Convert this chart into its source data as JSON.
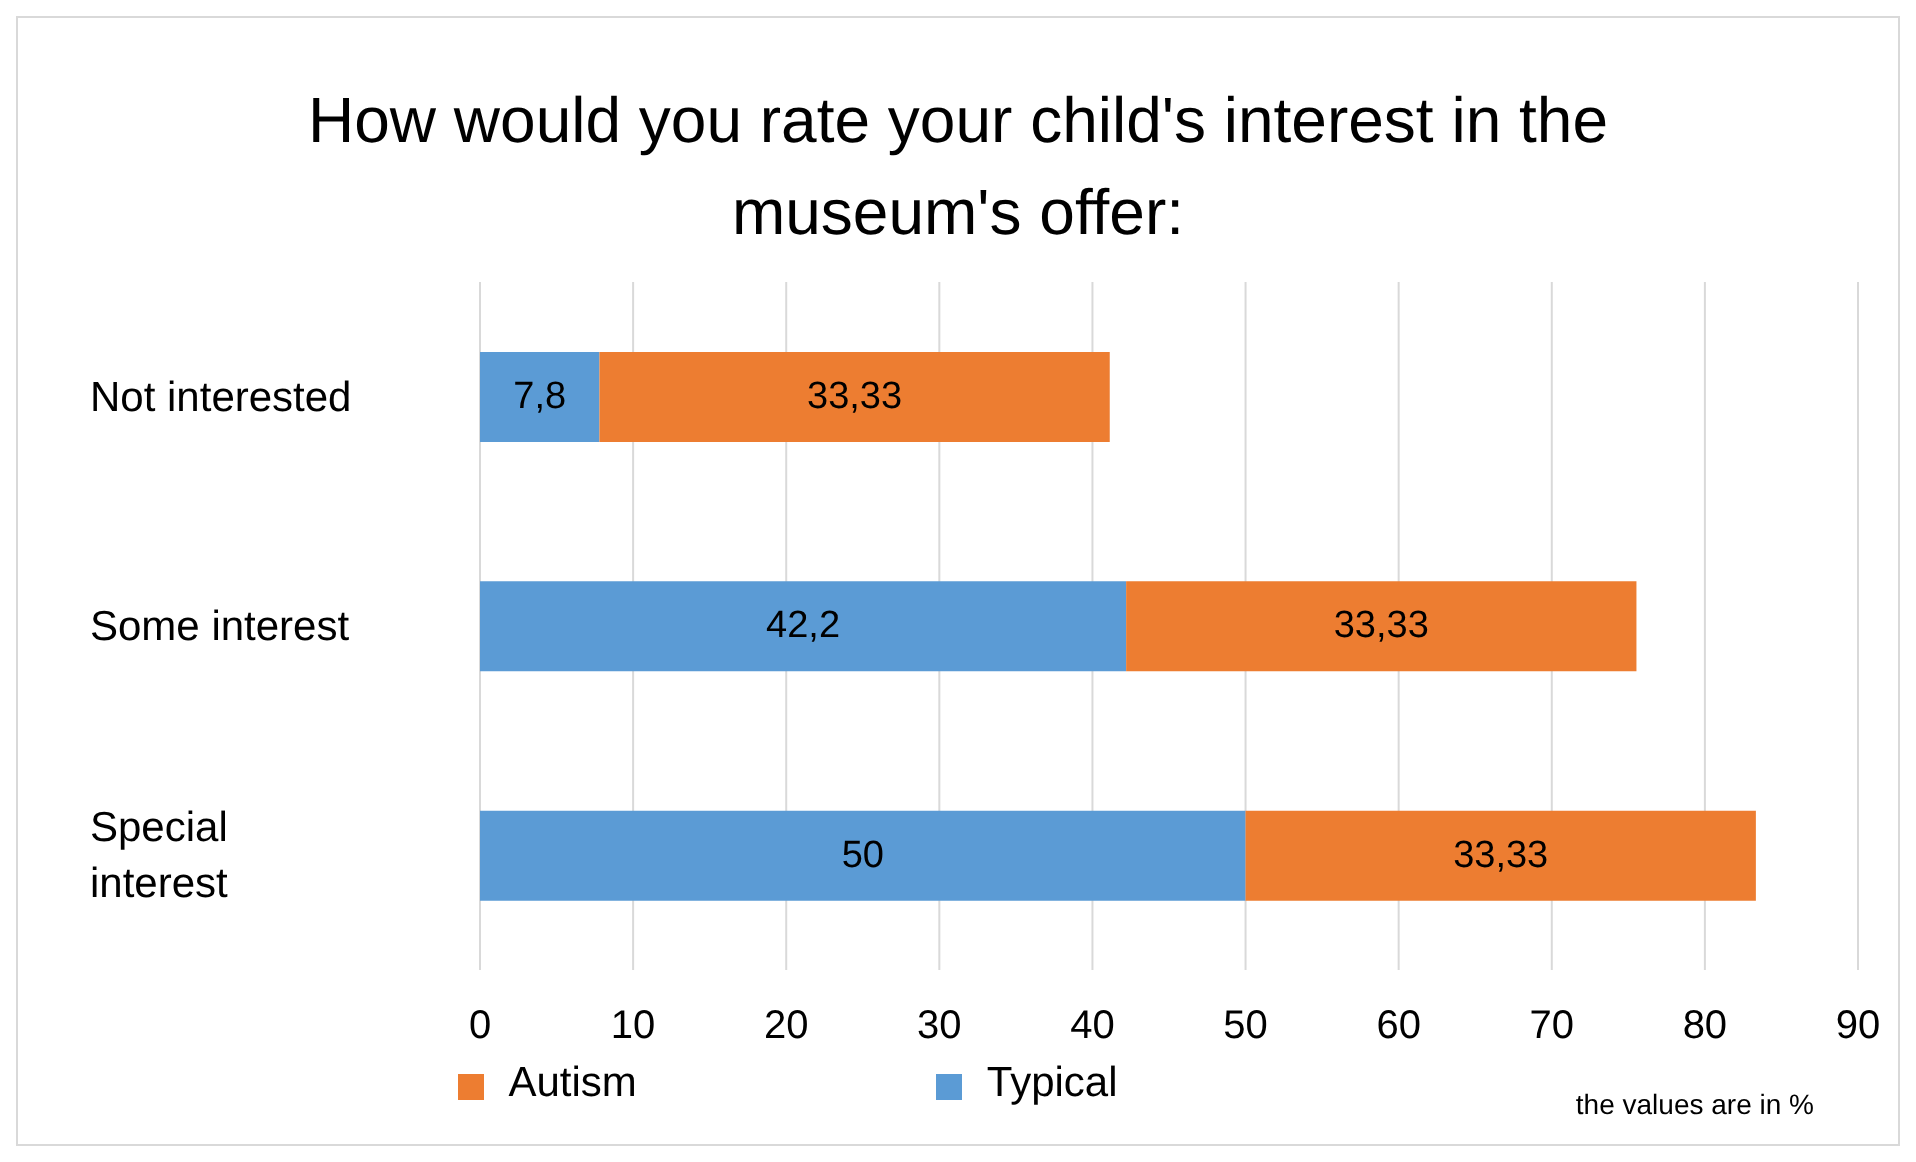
{
  "chart_data": {
    "type": "bar",
    "orientation": "horizontal",
    "stacked": true,
    "title": "How would you rate your child's interest in the museum's offer:",
    "categories": [
      "Not interested",
      "Some interest",
      "Special interest"
    ],
    "series": [
      {
        "name": "Typical",
        "color": "#5b9bd5",
        "values": [
          7.8,
          42.2,
          50
        ],
        "value_labels": [
          "7,8",
          "42,2",
          "50"
        ]
      },
      {
        "name": "Autism",
        "color": "#ed7d31",
        "values": [
          33.33,
          33.33,
          33.33
        ],
        "value_labels": [
          "33,33",
          "33,33",
          "33,33"
        ]
      }
    ],
    "xlim": [
      0,
      90
    ],
    "xticks": [
      0,
      10,
      20,
      30,
      40,
      50,
      60,
      70,
      80,
      90
    ],
    "grid": "x",
    "legend": "bottom",
    "annotations": [
      "the values are in %"
    ]
  }
}
